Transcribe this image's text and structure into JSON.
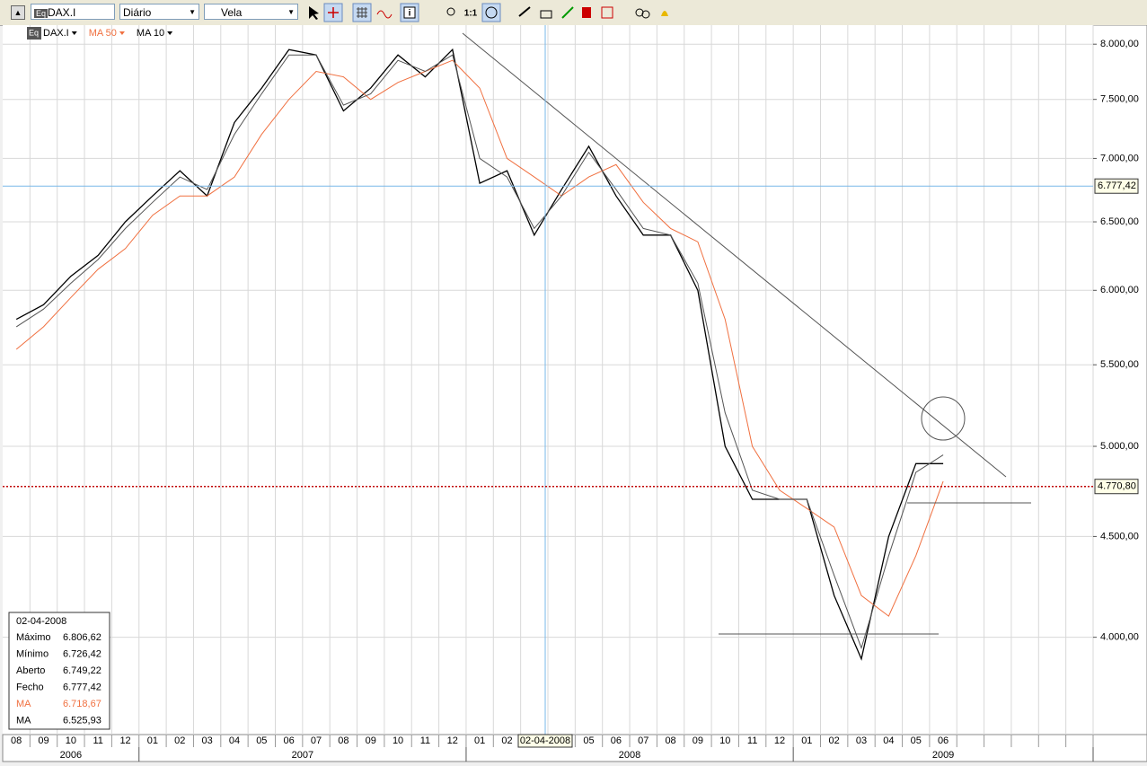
{
  "toolbar": {
    "symbol": "DAX.I",
    "period": "Diário",
    "style": "Vela",
    "zoom": "1:1"
  },
  "chart_data": {
    "type": "line",
    "categories": [
      "08",
      "09",
      "10",
      "11",
      "12",
      "01",
      "02",
      "03",
      "04",
      "05",
      "06",
      "07",
      "08",
      "09",
      "10",
      "11",
      "12",
      "01",
      "02",
      null,
      null,
      "05",
      "06",
      "07",
      "08",
      "09",
      "10",
      "11",
      "12",
      "01",
      "02",
      "03",
      "04",
      "05",
      "06",
      null,
      null,
      null,
      null,
      null
    ],
    "years": [
      "2006",
      "2007",
      "2008",
      "2009"
    ],
    "log_scale": true,
    "grid": true,
    "ylim": [
      3570,
      8180
    ],
    "yticks": [
      {
        "value": 4000,
        "label": "4.000,00"
      },
      {
        "value": 4500,
        "label": "4.500,00"
      },
      {
        "value": 5000,
        "label": "5.000,00"
      },
      {
        "value": 5500,
        "label": "5.500,00"
      },
      {
        "value": 6000,
        "label": "6.000,00"
      },
      {
        "value": 6500,
        "label": "6.500,00"
      },
      {
        "value": 7000,
        "label": "7.000,00"
      },
      {
        "value": 7500,
        "label": "7.500,00"
      },
      {
        "value": 8000,
        "label": "8.000,00"
      }
    ],
    "series": [
      {
        "name": "DAX.I",
        "color": "#000000",
        "values": [
          5800,
          5900,
          6100,
          6250,
          6500,
          6700,
          6900,
          6700,
          7300,
          7600,
          7950,
          7900,
          7400,
          7600,
          7900,
          7700,
          7950,
          6800,
          6900,
          6400,
          6750,
          7100,
          6700,
          6400,
          6400,
          6000,
          5000,
          4700,
          4700,
          4700,
          4200,
          3900,
          4500,
          4900,
          4900,
          null,
          null,
          null,
          null,
          null
        ]
      },
      {
        "name": "MA 50",
        "color": "#f07040",
        "values": [
          5600,
          5750,
          5950,
          6150,
          6300,
          6550,
          6700,
          6700,
          6850,
          7200,
          7500,
          7750,
          7700,
          7500,
          7650,
          7750,
          7850,
          7600,
          7000,
          6850,
          6700,
          6850,
          6950,
          6650,
          6450,
          6350,
          5800,
          5000,
          4750,
          4650,
          4550,
          4200,
          4100,
          4400,
          4800,
          null,
          null,
          null,
          null,
          null
        ]
      },
      {
        "name": "MA 10",
        "color": "#555555",
        "values": [
          5750,
          5870,
          6050,
          6220,
          6450,
          6650,
          6850,
          6750,
          7200,
          7550,
          7900,
          7900,
          7450,
          7550,
          7850,
          7750,
          7900,
          7000,
          6850,
          6450,
          6700,
          7050,
          6750,
          6450,
          6400,
          6050,
          5200,
          4750,
          4700,
          4700,
          4300,
          3950,
          4400,
          4850,
          4950,
          null,
          null,
          null,
          null,
          null
        ]
      }
    ],
    "price_markers": [
      {
        "value": 6777.42,
        "label": "6.777,42",
        "color": "#7ab8e8"
      },
      {
        "value": 4770.8,
        "label": "4.770,80",
        "color": "#c00000"
      }
    ]
  },
  "info_box": {
    "date": "02-04-2008",
    "rows": [
      {
        "label": "Máximo",
        "value": "6.806,62"
      },
      {
        "label": "Mínimo",
        "value": "6.726,42"
      },
      {
        "label": "Aberto",
        "value": "6.749,22"
      },
      {
        "label": "Fecho",
        "value": "6.777,42"
      },
      {
        "label": "MA",
        "value": "6.718,67"
      },
      {
        "label": "MA",
        "value": "6.525,93"
      }
    ]
  }
}
